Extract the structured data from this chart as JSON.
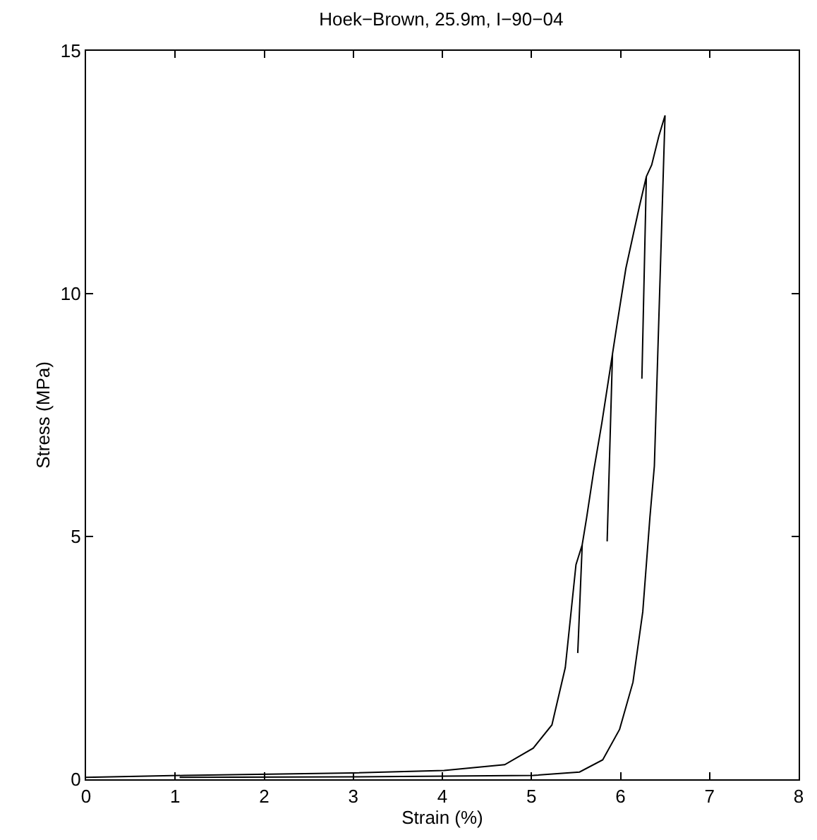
{
  "chart_data": {
    "type": "line",
    "title": "Hoek−Brown, 25.9m, I−90−04",
    "xlabel": "Strain (%)",
    "ylabel": "Stress (MPa)",
    "xlim": [
      0,
      8
    ],
    "ylim": [
      0,
      15
    ],
    "xticks": [
      0,
      1,
      2,
      3,
      4,
      5,
      6,
      7,
      8
    ],
    "yticks": [
      0,
      5,
      10,
      15
    ],
    "marker": "none",
    "line_style": "solid",
    "series": [
      {
        "color": "#000000",
        "x": [
          0,
          1.1,
          3,
          4.02,
          4.7,
          5.02,
          5.23,
          5.38,
          5.5,
          5.57,
          5.52,
          5.57,
          5.62,
          5.7,
          5.79,
          5.91,
          5.85,
          5.91,
          5.96,
          6.06,
          6.21,
          6.29,
          6.24,
          6.29,
          6.35,
          6.43,
          6.5,
          6.38,
          6.33,
          6.25,
          6.14,
          5.99,
          5.8,
          5.54,
          5.02,
          3,
          1.05
        ],
        "values": [
          0.04,
          0.08,
          0.13,
          0.18,
          0.3,
          0.64,
          1.12,
          2.3,
          4.42,
          4.83,
          2.6,
          4.83,
          5.39,
          6.36,
          7.33,
          8.76,
          4.9,
          8.76,
          9.36,
          10.52,
          11.78,
          12.41,
          8.25,
          12.41,
          12.65,
          13.24,
          13.67,
          6.45,
          5.39,
          3.45,
          2.0,
          1.03,
          0.4,
          0.15,
          0.08,
          0.05,
          0.04
        ]
      }
    ]
  }
}
